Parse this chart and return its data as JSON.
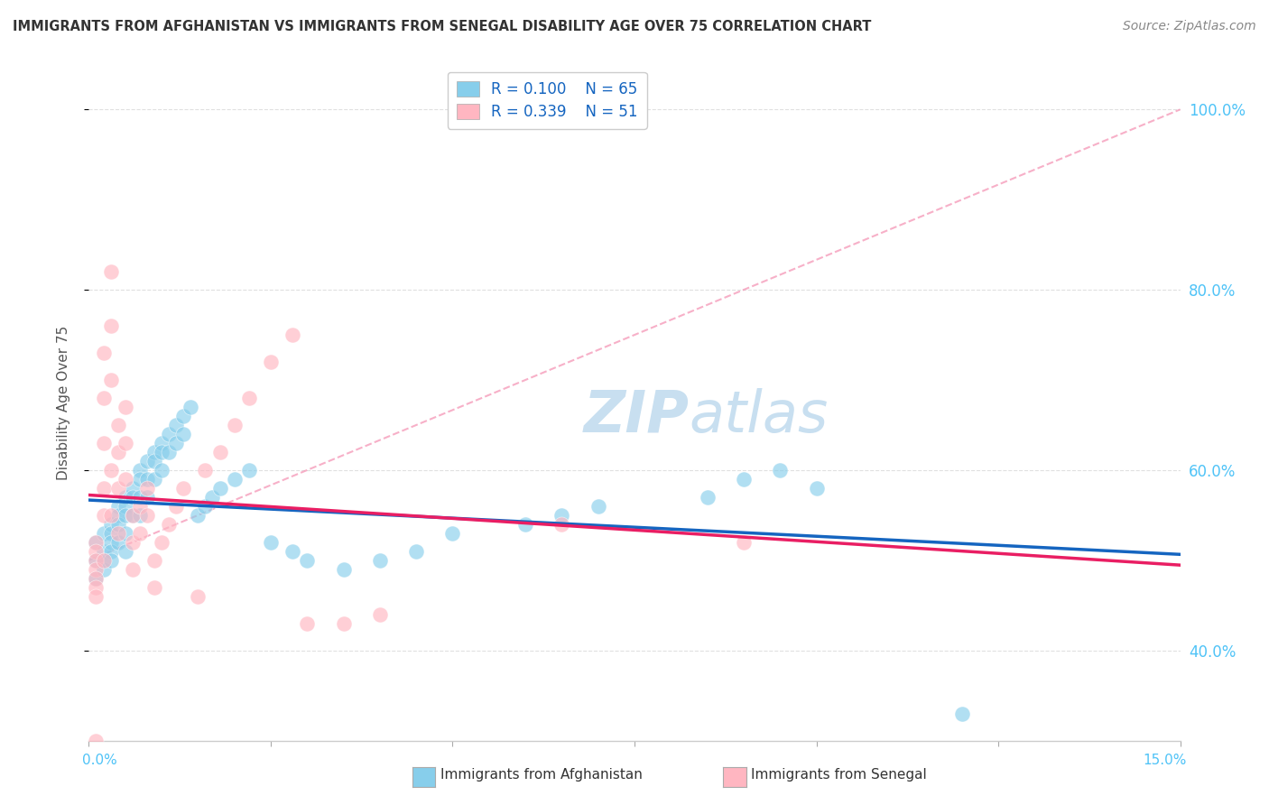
{
  "title": "IMMIGRANTS FROM AFGHANISTAN VS IMMIGRANTS FROM SENEGAL DISABILITY AGE OVER 75 CORRELATION CHART",
  "source": "Source: ZipAtlas.com",
  "xlabel_bottom_left": "0.0%",
  "xlabel_bottom_right": "15.0%",
  "ylabel": "Disability Age Over 75",
  "x_min": 0.0,
  "x_max": 0.15,
  "y_min": 0.3,
  "y_max": 1.05,
  "right_yticks": [
    0.4,
    0.6,
    0.8,
    1.0
  ],
  "right_yticklabels": [
    "40.0%",
    "60.0%",
    "80.0%",
    "100.0%"
  ],
  "legend_r1": "R = 0.100",
  "legend_n1": "N = 65",
  "legend_r2": "R = 0.339",
  "legend_n2": "N = 51",
  "color_afghanistan": "#87CEEB",
  "color_senegal": "#FFB6C1",
  "color_trend_afghanistan": "#1565C0",
  "color_trend_senegal": "#E91E63",
  "color_ref_line": "#F48FB1",
  "color_grid": "#e0e0e0",
  "watermark_color": "#c8dff0",
  "afghanistan_x": [
    0.001,
    0.001,
    0.001,
    0.002,
    0.002,
    0.002,
    0.002,
    0.003,
    0.003,
    0.003,
    0.003,
    0.003,
    0.004,
    0.004,
    0.004,
    0.004,
    0.005,
    0.005,
    0.005,
    0.005,
    0.005,
    0.006,
    0.006,
    0.006,
    0.007,
    0.007,
    0.007,
    0.007,
    0.008,
    0.008,
    0.008,
    0.009,
    0.009,
    0.009,
    0.01,
    0.01,
    0.01,
    0.011,
    0.011,
    0.012,
    0.012,
    0.013,
    0.013,
    0.014,
    0.015,
    0.016,
    0.017,
    0.018,
    0.02,
    0.022,
    0.025,
    0.028,
    0.03,
    0.035,
    0.04,
    0.045,
    0.05,
    0.06,
    0.065,
    0.07,
    0.085,
    0.09,
    0.095,
    0.1,
    0.12
  ],
  "afghanistan_y": [
    0.5,
    0.52,
    0.48,
    0.53,
    0.51,
    0.5,
    0.49,
    0.54,
    0.53,
    0.52,
    0.51,
    0.5,
    0.56,
    0.55,
    0.54,
    0.52,
    0.57,
    0.56,
    0.55,
    0.53,
    0.51,
    0.58,
    0.57,
    0.55,
    0.6,
    0.59,
    0.57,
    0.55,
    0.61,
    0.59,
    0.57,
    0.62,
    0.61,
    0.59,
    0.63,
    0.62,
    0.6,
    0.64,
    0.62,
    0.65,
    0.63,
    0.66,
    0.64,
    0.67,
    0.55,
    0.56,
    0.57,
    0.58,
    0.59,
    0.6,
    0.52,
    0.51,
    0.5,
    0.49,
    0.5,
    0.51,
    0.53,
    0.54,
    0.55,
    0.56,
    0.57,
    0.59,
    0.6,
    0.58,
    0.33
  ],
  "senegal_x": [
    0.001,
    0.001,
    0.001,
    0.001,
    0.001,
    0.001,
    0.001,
    0.002,
    0.002,
    0.002,
    0.002,
    0.002,
    0.002,
    0.003,
    0.003,
    0.003,
    0.003,
    0.003,
    0.004,
    0.004,
    0.004,
    0.004,
    0.005,
    0.005,
    0.005,
    0.006,
    0.006,
    0.006,
    0.007,
    0.007,
    0.008,
    0.008,
    0.009,
    0.009,
    0.01,
    0.011,
    0.012,
    0.013,
    0.015,
    0.016,
    0.018,
    0.02,
    0.022,
    0.025,
    0.028,
    0.03,
    0.035,
    0.04,
    0.065,
    0.09,
    0.001
  ],
  "senegal_y": [
    0.52,
    0.51,
    0.5,
    0.49,
    0.48,
    0.47,
    0.46,
    0.73,
    0.68,
    0.63,
    0.58,
    0.55,
    0.5,
    0.82,
    0.76,
    0.7,
    0.6,
    0.55,
    0.65,
    0.62,
    0.58,
    0.53,
    0.67,
    0.63,
    0.59,
    0.55,
    0.52,
    0.49,
    0.56,
    0.53,
    0.58,
    0.55,
    0.5,
    0.47,
    0.52,
    0.54,
    0.56,
    0.58,
    0.46,
    0.6,
    0.62,
    0.65,
    0.68,
    0.72,
    0.75,
    0.43,
    0.43,
    0.44,
    0.54,
    0.52,
    0.3
  ],
  "ref_line_x": [
    0.0,
    0.15
  ],
  "ref_line_y": [
    0.5,
    1.0
  ]
}
